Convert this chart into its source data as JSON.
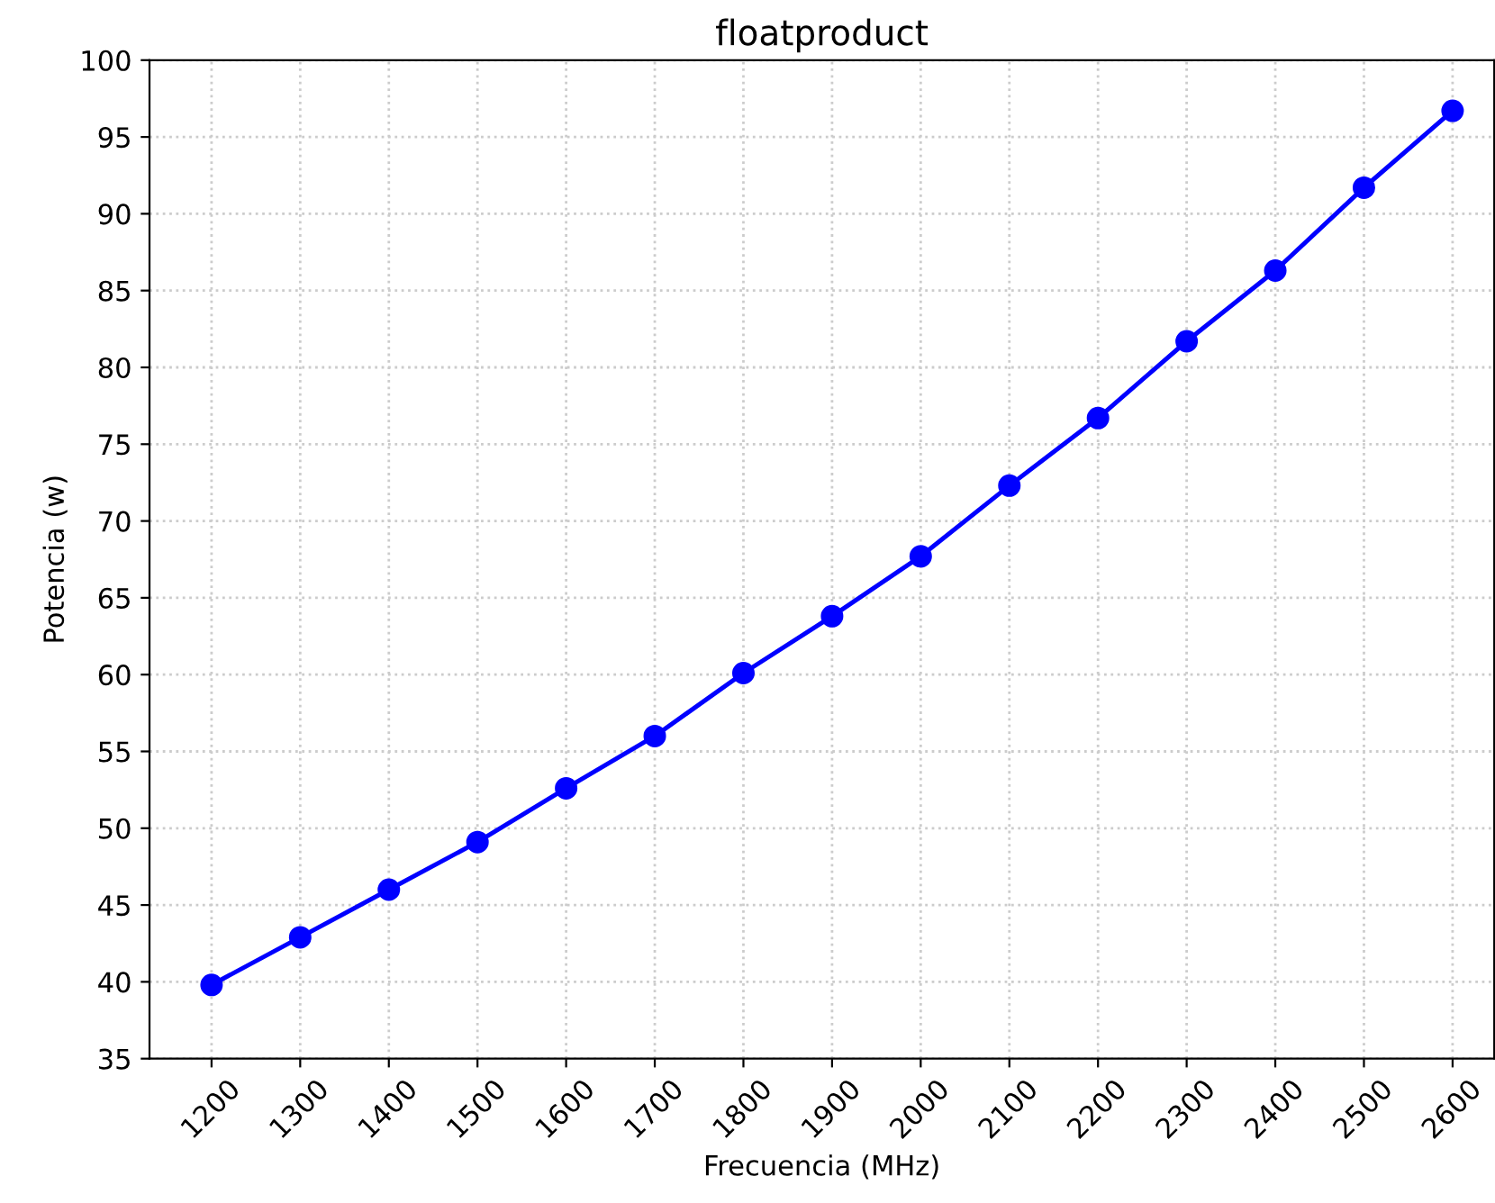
{
  "chart_data": {
    "type": "line",
    "title": "floatproduct",
    "xlabel": "Frecuencia (MHz)",
    "ylabel": "Potencia (w)",
    "x": [
      1200,
      1300,
      1400,
      1500,
      1600,
      1700,
      1800,
      1900,
      2000,
      2100,
      2200,
      2300,
      2400,
      2500,
      2600
    ],
    "series": [
      {
        "color": "#0000ff",
        "values": [
          39.8,
          42.9,
          46.0,
          49.1,
          52.6,
          56.0,
          60.1,
          63.8,
          67.7,
          72.3,
          76.7,
          81.7,
          86.3,
          91.7,
          96.7
        ]
      }
    ],
    "xlim": [
      1130,
      2647
    ],
    "xticks": [
      1200,
      1300,
      1400,
      1500,
      1600,
      1700,
      1800,
      1900,
      2000,
      2100,
      2200,
      2300,
      2400,
      2500,
      2600
    ],
    "ylim": [
      35,
      100
    ],
    "yticks": [
      35,
      40,
      45,
      50,
      55,
      60,
      65,
      70,
      75,
      80,
      85,
      90,
      95,
      100
    ],
    "grid": true,
    "marker": "circle",
    "line_style": "solid"
  }
}
